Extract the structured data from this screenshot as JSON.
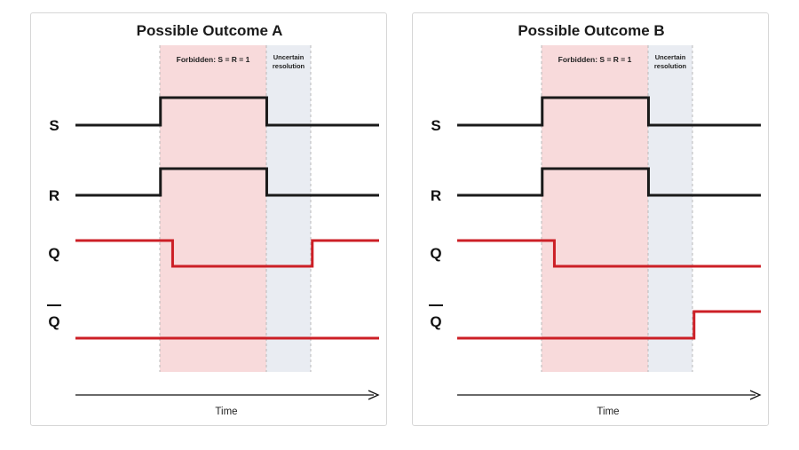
{
  "colors": {
    "forbidden_fill": "#f8dadb",
    "uncertain_fill": "#e9ecf2",
    "boundary": "#b9b9b9",
    "input_signal": "#1a1a1a",
    "output_signal": "#cc1f26",
    "axis": "#111111"
  },
  "labels": {
    "forbidden": "Forbidden: S = R = 1",
    "uncertain_line1": "Uncertain",
    "uncertain_line2": "resolution",
    "time": "Time"
  },
  "signals": {
    "s": "S",
    "r": "R",
    "q": "Q",
    "qbar": "Q"
  },
  "panels": [
    {
      "title": "Possible Outcome A",
      "waveforms": {
        "S": [
          [
            0,
            0
          ],
          [
            0.28,
            1
          ],
          [
            0.63,
            0
          ]
        ],
        "R": [
          [
            0,
            0
          ],
          [
            0.28,
            1
          ],
          [
            0.63,
            0
          ]
        ],
        "Q": [
          [
            0,
            1
          ],
          [
            0.32,
            0
          ],
          [
            0.78,
            1
          ]
        ],
        "Qbar": [
          [
            0,
            0
          ]
        ]
      }
    },
    {
      "title": "Possible Outcome B",
      "waveforms": {
        "S": [
          [
            0,
            0
          ],
          [
            0.28,
            1
          ],
          [
            0.63,
            0
          ]
        ],
        "R": [
          [
            0,
            0
          ],
          [
            0.28,
            1
          ],
          [
            0.63,
            0
          ]
        ],
        "Q": [
          [
            0,
            1
          ],
          [
            0.32,
            0
          ]
        ],
        "Qbar": [
          [
            0,
            0
          ],
          [
            0.78,
            1
          ]
        ]
      }
    }
  ]
}
